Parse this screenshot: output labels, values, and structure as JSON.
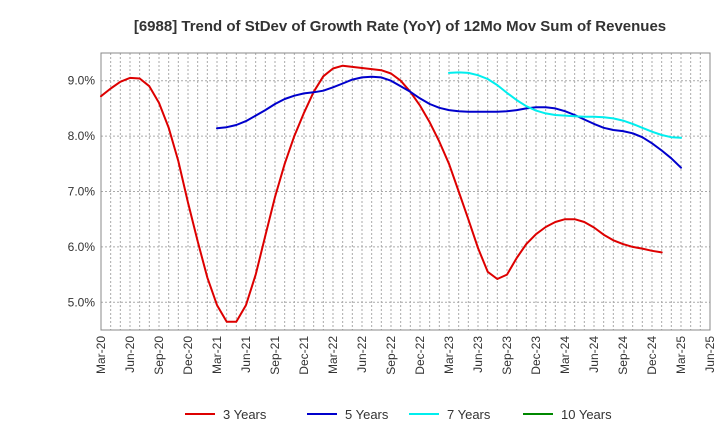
{
  "chart_data": {
    "type": "line",
    "title": "[6988]  Trend of StDev of Growth Rate (YoY) of 12Mo Mov Sum of Revenues",
    "xlabel": "",
    "ylabel": "",
    "ylim": [
      4.5,
      9.5
    ],
    "y_ticks": [
      5.0,
      6.0,
      7.0,
      8.0,
      9.0
    ],
    "y_tick_labels": [
      "5.0%",
      "6.0%",
      "7.0%",
      "8.0%",
      "9.0%"
    ],
    "x_tick_labels": [
      "Mar-20",
      "Jun-20",
      "Sep-20",
      "Dec-20",
      "Mar-21",
      "Jun-21",
      "Sep-21",
      "Dec-21",
      "Mar-22",
      "Jun-22",
      "Sep-22",
      "Dec-22",
      "Mar-23",
      "Jun-23",
      "Sep-23",
      "Dec-23",
      "Mar-24",
      "Jun-24",
      "Sep-24",
      "Dec-24",
      "Mar-25",
      "Jun-25"
    ],
    "x_start_index": 0,
    "x_end_index": 63,
    "grid": true,
    "legend_position": "bottom",
    "series": [
      {
        "name": "3 Years",
        "color": "#dd0000",
        "start_index": 0,
        "values": [
          8.72,
          8.86,
          8.98,
          9.05,
          9.04,
          8.9,
          8.6,
          8.15,
          7.55,
          6.8,
          6.1,
          5.45,
          4.95,
          4.65,
          4.65,
          4.95,
          5.5,
          6.2,
          6.9,
          7.5,
          8.0,
          8.42,
          8.8,
          9.08,
          9.22,
          9.27,
          9.25,
          9.23,
          9.21,
          9.19,
          9.13,
          9.0,
          8.8,
          8.55,
          8.25,
          7.9,
          7.5,
          7.0,
          6.5,
          5.98,
          5.55,
          5.42,
          5.5,
          5.8,
          6.05,
          6.23,
          6.36,
          6.45,
          6.5,
          6.5,
          6.45,
          6.35,
          6.22,
          6.12,
          6.05,
          6.0,
          5.97,
          5.93,
          5.9
        ]
      },
      {
        "name": "5 Years",
        "color": "#0000cc",
        "start_index": 12,
        "values": [
          8.14,
          8.16,
          8.2,
          8.27,
          8.37,
          8.47,
          8.58,
          8.67,
          8.73,
          8.77,
          8.79,
          8.82,
          8.88,
          8.95,
          9.02,
          9.06,
          9.07,
          9.06,
          9.0,
          8.9,
          8.8,
          8.68,
          8.58,
          8.51,
          8.47,
          8.45,
          8.44,
          8.44,
          8.44,
          8.44,
          8.45,
          8.47,
          8.5,
          8.52,
          8.52,
          8.5,
          8.45,
          8.38,
          8.3,
          8.22,
          8.15,
          8.11,
          8.09,
          8.05,
          7.98,
          7.87,
          7.74,
          7.6,
          7.43
        ]
      },
      {
        "name": "7 Years",
        "color": "#00eeee",
        "start_index": 36,
        "values": [
          9.14,
          9.15,
          9.14,
          9.1,
          9.03,
          8.92,
          8.78,
          8.65,
          8.54,
          8.46,
          8.41,
          8.38,
          8.37,
          8.36,
          8.35,
          8.35,
          8.34,
          8.32,
          8.28,
          8.22,
          8.15,
          8.08,
          8.02,
          7.98,
          7.97
        ]
      },
      {
        "name": "10 Years",
        "color": "#008800",
        "start_index": 0,
        "values": []
      }
    ]
  }
}
